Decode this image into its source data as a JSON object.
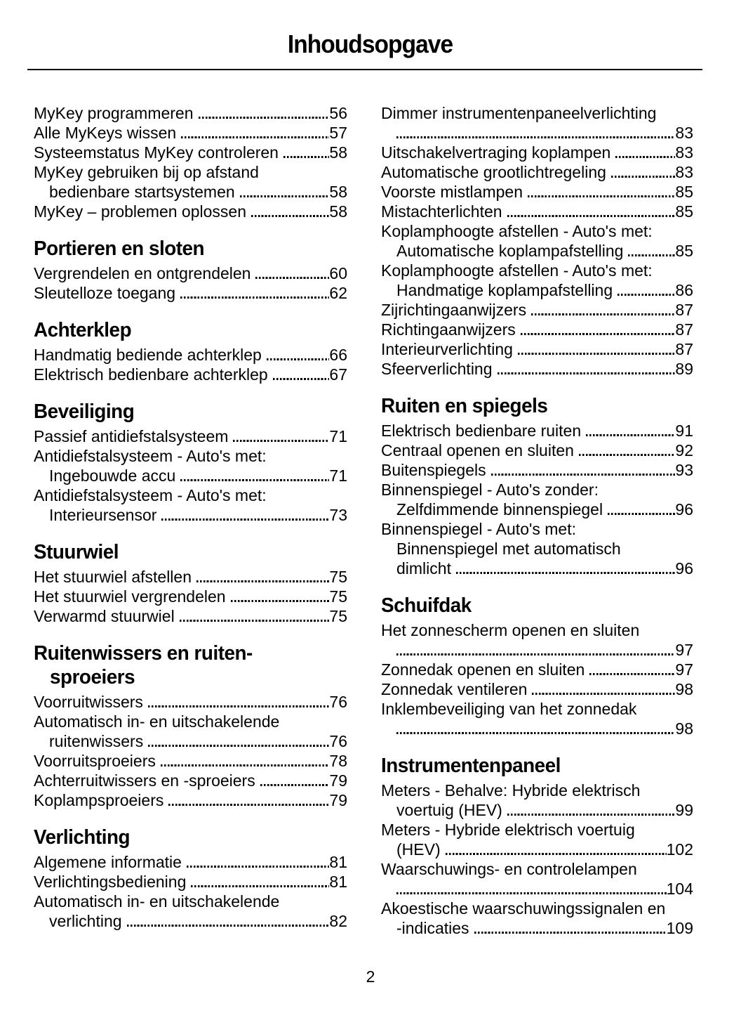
{
  "page": {
    "title": "Inhoudsopgave",
    "page_number": "2",
    "text_color": "#000000"
  },
  "columns": [
    {
      "name": "left",
      "blocks": [
        {
          "heading": [],
          "entries": [
            {
              "lines": [
                "MyKey programmeren"
              ],
              "page": "56"
            },
            {
              "lines": [
                "Alle MyKeys wissen"
              ],
              "page": "57"
            },
            {
              "lines": [
                "Systeemstatus MyKey controleren"
              ],
              "page": "58"
            },
            {
              "lines": [
                "MyKey gebruiken bij op afstand",
                "bedienbare startsystemen"
              ],
              "page": "58"
            },
            {
              "lines": [
                "MyKey – problemen oplossen"
              ],
              "page": "58"
            }
          ]
        },
        {
          "heading": [
            "Portieren en sloten"
          ],
          "entries": [
            {
              "lines": [
                "Vergrendelen en ontgrendelen"
              ],
              "page": "60"
            },
            {
              "lines": [
                "Sleutelloze toegang"
              ],
              "page": "62"
            }
          ]
        },
        {
          "heading": [
            "Achterklep"
          ],
          "entries": [
            {
              "lines": [
                "Handmatig bediende achterklep"
              ],
              "page": "66"
            },
            {
              "lines": [
                "Elektrisch bedienbare achterklep"
              ],
              "page": "67"
            }
          ]
        },
        {
          "heading": [
            "Beveiliging"
          ],
          "entries": [
            {
              "lines": [
                "Passief antidiefstalsysteem"
              ],
              "page": "71"
            },
            {
              "lines": [
                "Antidiefstalsysteem - Auto's met:",
                "Ingebouwde accu"
              ],
              "page": "71"
            },
            {
              "lines": [
                "Antidiefstalsysteem - Auto's met:",
                "Interieursensor"
              ],
              "page": "73"
            }
          ]
        },
        {
          "heading": [
            "Stuurwiel"
          ],
          "entries": [
            {
              "lines": [
                "Het stuurwiel afstellen"
              ],
              "page": "75"
            },
            {
              "lines": [
                "Het stuurwiel vergrendelen"
              ],
              "page": "75"
            },
            {
              "lines": [
                "Verwarmd stuurwiel"
              ],
              "page": "75"
            }
          ]
        },
        {
          "heading": [
            "Ruitenwissers en ruiten-",
            "sproeiers"
          ],
          "entries": [
            {
              "lines": [
                "Voorruitwissers"
              ],
              "page": "76"
            },
            {
              "lines": [
                "Automatisch in- en uitschakelende",
                "ruitenwissers"
              ],
              "page": "76"
            },
            {
              "lines": [
                "Voorruitsproeiers"
              ],
              "page": "78"
            },
            {
              "lines": [
                "Achterruitwissers en -sproeiers"
              ],
              "page": "79"
            },
            {
              "lines": [
                "Koplampsproeiers"
              ],
              "page": "79"
            }
          ]
        },
        {
          "heading": [
            "Verlichting"
          ],
          "entries": [
            {
              "lines": [
                "Algemene informatie"
              ],
              "page": "81"
            },
            {
              "lines": [
                "Verlichtingsbediening"
              ],
              "page": "81"
            },
            {
              "lines": [
                "Automatisch in- en uitschakelende",
                "verlichting"
              ],
              "page": "82"
            }
          ]
        }
      ]
    },
    {
      "name": "right",
      "blocks": [
        {
          "heading": [],
          "entries": [
            {
              "lines": [
                "Dimmer instrumentenpaneelverlichting",
                ""
              ],
              "page": "83"
            },
            {
              "lines": [
                "Uitschakelvertraging koplampen"
              ],
              "page": "83"
            },
            {
              "lines": [
                "Automatische grootlichtregeling"
              ],
              "page": "83"
            },
            {
              "lines": [
                "Voorste mistlampen"
              ],
              "page": "85"
            },
            {
              "lines": [
                "Mistachterlichten"
              ],
              "page": "85"
            },
            {
              "lines": [
                "Koplamphoogte afstellen - Auto's met:",
                "Automatische koplampafstelling"
              ],
              "page": "85"
            },
            {
              "lines": [
                "Koplamphoogte afstellen - Auto's met:",
                "Handmatige koplampafstelling"
              ],
              "page": "86"
            },
            {
              "lines": [
                "Zijrichtingaanwijzers"
              ],
              "page": "87"
            },
            {
              "lines": [
                "Richtingaanwijzers"
              ],
              "page": "87"
            },
            {
              "lines": [
                "Interieurverlichting"
              ],
              "page": "87"
            },
            {
              "lines": [
                "Sfeerverlichting"
              ],
              "page": "89"
            }
          ]
        },
        {
          "heading": [
            "Ruiten en spiegels"
          ],
          "entries": [
            {
              "lines": [
                "Elektrisch bedienbare ruiten"
              ],
              "page": "91"
            },
            {
              "lines": [
                "Centraal openen en sluiten"
              ],
              "page": "92"
            },
            {
              "lines": [
                "Buitenspiegels"
              ],
              "page": "93"
            },
            {
              "lines": [
                "Binnenspiegel - Auto's zonder:",
                "Zelfdimmende binnenspiegel"
              ],
              "page": "96"
            },
            {
              "lines": [
                "Binnenspiegel - Auto's met:",
                "Binnenspiegel met automatisch",
                "dimlicht"
              ],
              "page": "96"
            }
          ]
        },
        {
          "heading": [
            "Schuifdak"
          ],
          "entries": [
            {
              "lines": [
                "Het zonnescherm openen en sluiten",
                ""
              ],
              "page": "97"
            },
            {
              "lines": [
                "Zonnedak openen en sluiten"
              ],
              "page": "97"
            },
            {
              "lines": [
                "Zonnedak ventileren"
              ],
              "page": "98"
            },
            {
              "lines": [
                "Inklembeveiliging van het zonnedak",
                ""
              ],
              "page": "98"
            }
          ]
        },
        {
          "heading": [
            "Instrumentenpaneel"
          ],
          "entries": [
            {
              "lines": [
                "Meters - Behalve: Hybride elektrisch",
                "voertuig (HEV)"
              ],
              "page": "99"
            },
            {
              "lines": [
                "Meters - Hybride elektrisch voertuig",
                "(HEV)"
              ],
              "page": "102"
            },
            {
              "lines": [
                "Waarschuwings- en controlelampen",
                ""
              ],
              "page": "104"
            },
            {
              "lines": [
                "Akoestische waarschuwingssignalen en",
                "-indicaties"
              ],
              "page": "109"
            }
          ]
        }
      ]
    }
  ]
}
